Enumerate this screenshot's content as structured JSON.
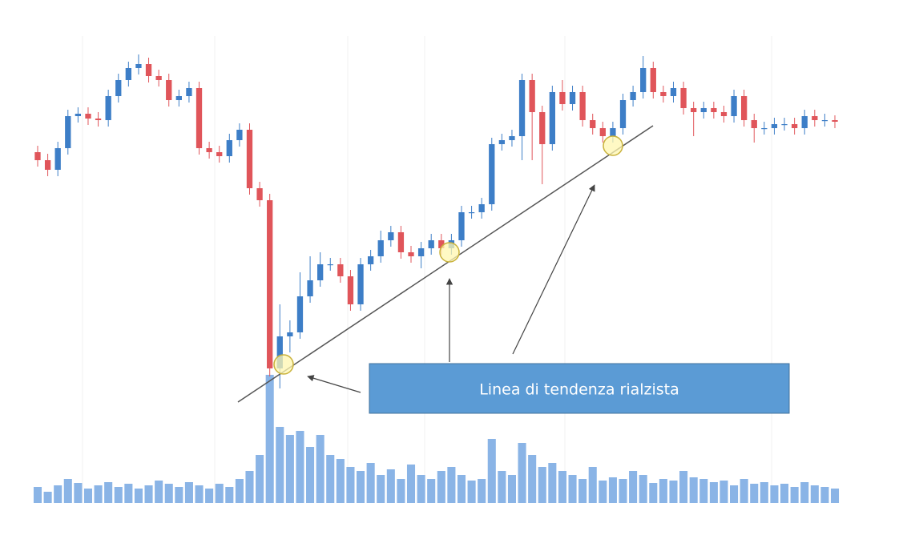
{
  "chart_data": {
    "type": "candlestick",
    "annotation": "Linea di tendenza rialzista",
    "up_color": "#3d7ec7",
    "down_color": "#e0555a",
    "volume_color": "#8ab4e6",
    "ylim": [
      0,
      470
    ],
    "volume_lim": [
      0,
      170
    ],
    "open": [
      310,
      300,
      288,
      315,
      355,
      358,
      352,
      350,
      380,
      400,
      415,
      420,
      405,
      400,
      375,
      380,
      390,
      315,
      310,
      305,
      325,
      338,
      265,
      250,
      40,
      80,
      85,
      130,
      150,
      170,
      170,
      155,
      120,
      170,
      180,
      200,
      210,
      185,
      180,
      190,
      200,
      190,
      200,
      235,
      235,
      245,
      320,
      325,
      330,
      400,
      360,
      320,
      385,
      370,
      385,
      350,
      340,
      330,
      340,
      375,
      385,
      415,
      385,
      380,
      390,
      365,
      360,
      365,
      360,
      355,
      380,
      350,
      340,
      340,
      345,
      345,
      340,
      355,
      350,
      350
    ],
    "high": [
      318,
      308,
      323,
      363,
      366,
      366,
      360,
      388,
      408,
      423,
      432,
      428,
      413,
      408,
      388,
      398,
      398,
      323,
      318,
      333,
      346,
      346,
      273,
      258,
      120,
      100,
      160,
      180,
      185,
      178,
      178,
      163,
      178,
      188,
      212,
      218,
      218,
      193,
      198,
      208,
      208,
      208,
      243,
      243,
      253,
      328,
      333,
      338,
      408,
      408,
      368,
      393,
      400,
      393,
      393,
      358,
      348,
      348,
      383,
      393,
      430,
      423,
      393,
      398,
      398,
      373,
      373,
      373,
      368,
      388,
      388,
      358,
      348,
      353,
      353,
      353,
      363,
      363,
      358,
      356
    ],
    "low": [
      292,
      280,
      280,
      307,
      347,
      344,
      342,
      342,
      372,
      392,
      407,
      397,
      392,
      367,
      367,
      372,
      307,
      302,
      297,
      297,
      317,
      257,
      242,
      30,
      15,
      60,
      77,
      122,
      142,
      162,
      147,
      112,
      112,
      162,
      172,
      192,
      177,
      172,
      165,
      182,
      182,
      182,
      192,
      227,
      227,
      237,
      312,
      317,
      300,
      300,
      270,
      312,
      362,
      362,
      342,
      332,
      322,
      322,
      332,
      367,
      377,
      377,
      372,
      372,
      357,
      330,
      352,
      352,
      347,
      347,
      342,
      322,
      332,
      332,
      337,
      332,
      332,
      342,
      342,
      340
    ],
    "close": [
      300,
      288,
      315,
      355,
      358,
      352,
      350,
      380,
      400,
      415,
      420,
      405,
      400,
      375,
      380,
      390,
      315,
      310,
      305,
      325,
      338,
      265,
      250,
      40,
      80,
      85,
      130,
      150,
      170,
      170,
      155,
      120,
      170,
      180,
      200,
      210,
      185,
      180,
      190,
      200,
      190,
      200,
      235,
      235,
      245,
      320,
      325,
      330,
      400,
      360,
      320,
      385,
      370,
      385,
      350,
      340,
      330,
      340,
      375,
      385,
      415,
      385,
      380,
      390,
      365,
      360,
      365,
      360,
      355,
      380,
      350,
      340,
      340,
      345,
      345,
      340,
      355,
      350,
      350,
      348
    ],
    "volume": [
      20,
      14,
      22,
      30,
      25,
      18,
      22,
      26,
      20,
      24,
      18,
      22,
      28,
      24,
      20,
      26,
      22,
      18,
      24,
      20,
      30,
      40,
      60,
      160,
      95,
      85,
      90,
      70,
      85,
      60,
      55,
      45,
      40,
      50,
      35,
      42,
      30,
      48,
      35,
      30,
      40,
      45,
      35,
      28,
      30,
      80,
      40,
      35,
      75,
      60,
      45,
      50,
      40,
      35,
      30,
      45,
      28,
      32,
      30,
      40,
      35,
      25,
      30,
      28,
      40,
      32,
      30,
      26,
      28,
      22,
      30,
      24,
      26,
      22,
      24,
      20,
      26,
      22,
      20,
      18
    ]
  }
}
